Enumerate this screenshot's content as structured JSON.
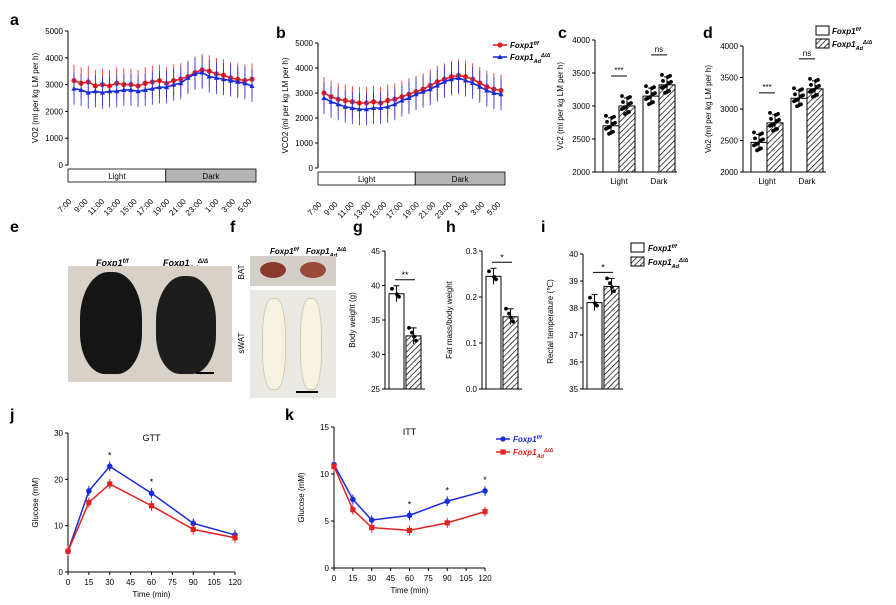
{
  "panel_letters": {
    "a": "a",
    "b": "b",
    "c": "c",
    "d": "d",
    "e": "e",
    "f": "f",
    "g": "g",
    "h": "h",
    "i": "i",
    "j": "j",
    "k": "k"
  },
  "genotypes": {
    "control": "Foxp1",
    "control_sup": "f/f",
    "ko": "Foxp1",
    "ko_sub": "Ad",
    "ko_sup": "Δ/Δ"
  },
  "colors": {
    "control": "#e52020",
    "ko": "#1a2bd8",
    "light_fill": "#ffffff",
    "dark_fill": "#b5b5b5"
  },
  "photo_labels": {
    "bat": "BAT",
    "swat": "sWAT"
  },
  "chart_data": [
    {
      "id": "a",
      "type": "line",
      "ylabel": "VO2 (ml per kg LM per h)",
      "ylim": [
        0,
        5000
      ],
      "yticks": [
        0,
        1000,
        2000,
        3000,
        4000,
        5000
      ],
      "xticks": [
        "7:00",
        "9:00",
        "11:00",
        "13:00",
        "15:00",
        "17:00",
        "19:00",
        "21:00",
        "23:00",
        "1:00",
        "3:00",
        "5:00"
      ],
      "bars": {
        "light": "Light",
        "dark": "Dark"
      },
      "series": [
        {
          "name": "Foxp1 f/f",
          "color": "#e52020",
          "values": [
            3150,
            3050,
            3100,
            2950,
            3000,
            2950,
            3050,
            3000,
            3000,
            2950,
            3050,
            3100,
            3150,
            3050,
            3150,
            3200,
            3300,
            3450,
            3550,
            3500,
            3400,
            3350,
            3250,
            3200,
            3150,
            3200
          ]
        },
        {
          "name": "Foxp1 Ad Δ/Δ",
          "color": "#1a2bd8",
          "values": [
            2850,
            2800,
            2700,
            2750,
            2700,
            2750,
            2750,
            2800,
            2800,
            2750,
            2800,
            2850,
            2900,
            2900,
            3000,
            3050,
            3250,
            3400,
            3450,
            3300,
            3250,
            3200,
            3150,
            3100,
            3050,
            2950
          ]
        }
      ]
    },
    {
      "id": "b",
      "type": "line",
      "ylabel": "VCO2 (ml per kg LM per h)",
      "ylim": [
        0,
        5000
      ],
      "yticks": [
        0,
        1000,
        2000,
        3000,
        4000,
        5000
      ],
      "xticks": [
        "7:00",
        "9:00",
        "11:00",
        "13:00",
        "15:00",
        "17:00",
        "19:00",
        "21:00",
        "23:00",
        "1:00",
        "3:00",
        "5:00"
      ],
      "bars": {
        "light": "Light",
        "dark": "Dark"
      },
      "legend": [
        "Foxp1 f/f",
        "Foxp1 Ad Δ/Δ"
      ],
      "series": [
        {
          "name": "Foxp1 f/f",
          "color": "#e52020",
          "values": [
            3000,
            2850,
            2750,
            2700,
            2650,
            2600,
            2600,
            2650,
            2600,
            2700,
            2750,
            2850,
            2950,
            3050,
            3150,
            3300,
            3450,
            3550,
            3650,
            3700,
            3650,
            3550,
            3400,
            3250,
            3150,
            3100
          ]
        },
        {
          "name": "Foxp1 Ad Δ/Δ",
          "color": "#1a2bd8",
          "values": [
            2800,
            2650,
            2550,
            2450,
            2400,
            2350,
            2350,
            2400,
            2400,
            2450,
            2550,
            2700,
            2800,
            2950,
            3050,
            3150,
            3300,
            3450,
            3550,
            3600,
            3500,
            3400,
            3250,
            3100,
            3000,
            2950
          ]
        }
      ]
    },
    {
      "id": "c",
      "type": "bar",
      "ylabel": "Vc2 (ml per kg LM per h)",
      "ylim": [
        2000,
        4000
      ],
      "yticks": [
        2000,
        2500,
        3000,
        3500,
        4000
      ],
      "categories": [
        "Light",
        "Dark"
      ],
      "values_control": [
        2700,
        3150
      ],
      "values_ko": [
        3000,
        3320
      ],
      "significance": [
        "***",
        "ns"
      ]
    },
    {
      "id": "d",
      "type": "bar",
      "ylabel": "Vo2 (ml per kg LM per h)",
      "ylim": [
        2000,
        4000
      ],
      "yticks": [
        2000,
        2500,
        3000,
        3500,
        4000
      ],
      "categories": [
        "Light",
        "Dark"
      ],
      "values_control": [
        2470,
        3170
      ],
      "values_ko": [
        2780,
        3320
      ],
      "significance": [
        "***",
        "ns"
      ],
      "legend": [
        "Foxp1 f/f",
        "Foxp1 Ad Δ/Δ"
      ]
    },
    {
      "id": "g",
      "type": "bar",
      "ylabel": "Body weight (g)",
      "ylim": [
        25,
        45
      ],
      "yticks": [
        25,
        30,
        35,
        40,
        45
      ],
      "values": [
        38.8,
        32.7
      ],
      "significance": "**"
    },
    {
      "id": "h",
      "type": "bar",
      "ylabel": "Fat mass/body weight",
      "ylim": [
        0,
        0.3
      ],
      "yticks": [
        0.0,
        0.1,
        0.2,
        0.3
      ],
      "values": [
        0.245,
        0.157
      ],
      "significance": "*"
    },
    {
      "id": "i",
      "type": "bar",
      "ylabel": "Rectal temperature (℃)",
      "ylim": [
        35,
        40
      ],
      "yticks": [
        35,
        36,
        37,
        38,
        39,
        40
      ],
      "values": [
        38.2,
        38.8
      ],
      "significance": "*",
      "legend": [
        "Foxp1 f/f",
        "Foxp1 Ad Δ/Δ"
      ]
    },
    {
      "id": "j",
      "type": "line",
      "title": "GTT",
      "xlabel": "Time (min)",
      "ylabel": "Glucose (mM)",
      "xlim": [
        0,
        120
      ],
      "ylim": [
        0,
        30
      ],
      "xticks": [
        0,
        15,
        30,
        45,
        60,
        75,
        90,
        105,
        120
      ],
      "yticks": [
        0,
        10,
        20,
        30
      ],
      "x": [
        0,
        15,
        30,
        60,
        90,
        120
      ],
      "series": [
        {
          "name": "Foxp1 f/f",
          "color": "#1a2bd8",
          "values": [
            4.5,
            17.5,
            22.8,
            17.0,
            10.5,
            8.0
          ]
        },
        {
          "name": "Foxp1 Ad Δ/Δ",
          "color": "#e52020",
          "values": [
            4.5,
            15.0,
            19.0,
            14.3,
            9.2,
            7.4
          ]
        }
      ],
      "stars": [
        {
          "x": 30,
          "label": "*"
        },
        {
          "x": 60,
          "label": "*"
        }
      ]
    },
    {
      "id": "k",
      "type": "line",
      "title": "ITT",
      "xlabel": "Time (min)",
      "ylabel": "Glucose (mM)",
      "xlim": [
        0,
        120
      ],
      "ylim": [
        0,
        15
      ],
      "xticks": [
        0,
        15,
        30,
        45,
        60,
        75,
        90,
        105,
        120
      ],
      "yticks": [
        0,
        5,
        10,
        15
      ],
      "x": [
        0,
        15,
        30,
        60,
        90,
        120
      ],
      "series": [
        {
          "name": "Foxp1 f/f",
          "color": "#1a2bd8",
          "values": [
            11.0,
            7.3,
            5.1,
            5.6,
            7.1,
            8.2
          ]
        },
        {
          "name": "Foxp1 Ad Δ/Δ",
          "color": "#e52020",
          "values": [
            10.8,
            6.2,
            4.3,
            4.0,
            4.8,
            6.0
          ]
        }
      ],
      "stars": [
        {
          "x": 60,
          "label": "*"
        },
        {
          "x": 90,
          "label": "*"
        },
        {
          "x": 120,
          "label": "*"
        }
      ],
      "legend": [
        "Foxp1 f/f",
        "Foxp1 Ad Δ/Δ"
      ]
    }
  ]
}
